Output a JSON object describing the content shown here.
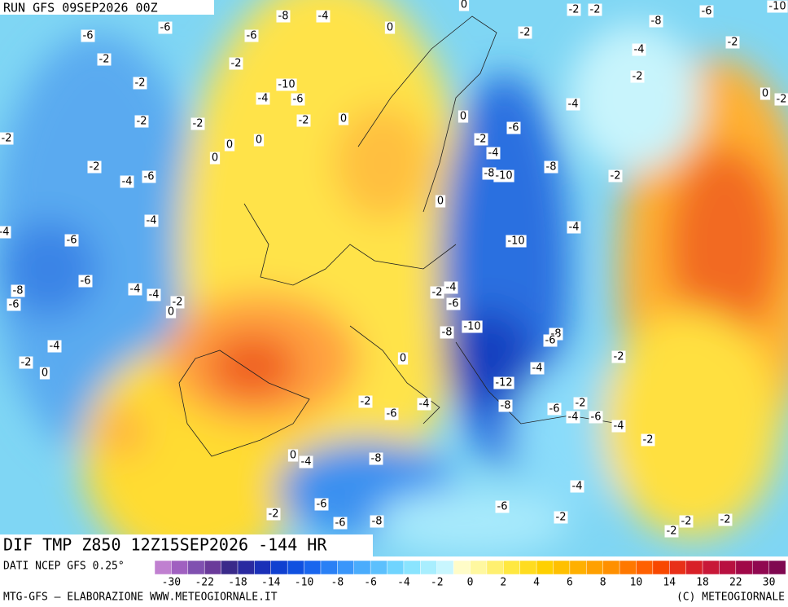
{
  "header": {
    "run": "RUN GFS 09SEP2026 00Z"
  },
  "map": {
    "title": "DIF TMP Z850 12Z15SEP2026 -144 HR",
    "labels": [
      -8,
      -4,
      0,
      -2,
      -2,
      -8,
      -6,
      -10,
      -6,
      -6,
      -6,
      0,
      -2,
      -2,
      -4,
      -2,
      -2,
      -10,
      -2,
      -4,
      -6,
      -2,
      -4,
      0,
      -2,
      -2,
      -2,
      -2,
      0,
      0,
      -6,
      -2,
      0,
      0,
      0,
      -2,
      -4,
      -2,
      -4,
      -6,
      -8,
      -10,
      -8,
      -2,
      0,
      -4,
      -4,
      -6,
      -4,
      -10,
      -6,
      -4,
      -4,
      -2,
      0,
      -8,
      -6,
      -2,
      -4,
      -6,
      -10,
      -8,
      -8,
      -6,
      -4,
      -2,
      0,
      0,
      -2,
      -4,
      -12,
      -2,
      -4,
      -8,
      -2,
      -6,
      -4,
      -6,
      -6,
      -4,
      -2,
      0,
      -4,
      -8,
      -4,
      -6,
      -6,
      -2,
      -6,
      -8,
      -2,
      -2,
      -2,
      -2
    ]
  },
  "scale": {
    "source": "DATI NCEP GFS 0.25°",
    "colors": [
      "#c080d0",
      "#a060c0",
      "#8050b0",
      "#6a3a9a",
      "#3a2a8a",
      "#2a2aa0",
      "#1a30b8",
      "#1040d0",
      "#1050e0",
      "#1a66ee",
      "#2a80f5",
      "#3a96fa",
      "#4aacfc",
      "#5cc0fd",
      "#70d4fe",
      "#8ae4fe",
      "#a8eefe",
      "#c8f6fe",
      "#fffcc8",
      "#fff8a0",
      "#fff070",
      "#ffe840",
      "#ffdc20",
      "#ffd000",
      "#ffc000",
      "#ffb000",
      "#ffa000",
      "#ff9000",
      "#ff7800",
      "#ff6000",
      "#f84800",
      "#e83018",
      "#d82028",
      "#c81838",
      "#b81040",
      "#a00848",
      "#900850",
      "#800850"
    ],
    "ticks": [
      -30,
      -22,
      -18,
      -14,
      -10,
      -8,
      -6,
      -4,
      -2,
      0,
      2,
      4,
      6,
      8,
      10,
      14,
      18,
      22,
      30
    ]
  },
  "footer": {
    "left": "MTG-GFS – ELABORAZIONE WWW.METEOGIORNALE.IT",
    "right": "(C) METEOGIORNALE"
  }
}
